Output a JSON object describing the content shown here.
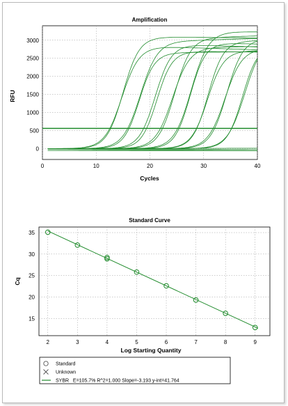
{
  "chart_data": [
    {
      "type": "line",
      "title": "Amplification",
      "xlabel": "Cycles",
      "ylabel": "RFU",
      "xlim": [
        0,
        40
      ],
      "ylim": [
        -300,
        3400
      ],
      "x_ticks": [
        0,
        10,
        20,
        30,
        40
      ],
      "y_ticks": [
        0,
        500,
        1000,
        1500,
        2000,
        2500,
        3000
      ],
      "grid": true,
      "line_color": "#1e8a2a",
      "threshold": 560,
      "series": [
        {
          "midpoint_cycle": 14.8,
          "plateau": 2850
        },
        {
          "midpoint_cycle": 15.0,
          "plateau": 3100
        },
        {
          "midpoint_cycle": 18.0,
          "plateau": 2650
        },
        {
          "midpoint_cycle": 18.2,
          "plateau": 2950
        },
        {
          "midpoint_cycle": 21.0,
          "plateau": 2900
        },
        {
          "midpoint_cycle": 21.3,
          "plateau": 2700
        },
        {
          "midpoint_cycle": 24.2,
          "plateau": 2800
        },
        {
          "midpoint_cycle": 24.6,
          "plateau": 3050
        },
        {
          "midpoint_cycle": 27.5,
          "plateau": 2950
        },
        {
          "midpoint_cycle": 27.7,
          "plateau": 3250
        },
        {
          "midpoint_cycle": 30.7,
          "plateau": 2700
        },
        {
          "midpoint_cycle": 30.8,
          "plateau": 2950
        },
        {
          "midpoint_cycle": 34.0,
          "plateau": 2800
        },
        {
          "midpoint_cycle": 34.3,
          "plateau": 3050
        },
        {
          "midpoint_cycle": 37.2,
          "plateau": 2850
        },
        {
          "midpoint_cycle": 37.6,
          "plateau": 3000
        }
      ]
    },
    {
      "type": "scatter",
      "title": "Standard Curve",
      "xlabel": "Log Starting Quantity",
      "ylabel": "Cq",
      "xlim": [
        1.7,
        9.5
      ],
      "ylim": [
        11,
        36.3
      ],
      "x_ticks": [
        2,
        3,
        4,
        5,
        6,
        7,
        8,
        9
      ],
      "y_ticks": [
        15,
        20,
        25,
        30,
        35
      ],
      "grid": true,
      "point_color": "#1e8a2a",
      "fit_line_color": "#1e8a2a",
      "points": [
        {
          "x": 2,
          "y": 35.1
        },
        {
          "x": 3,
          "y": 32.1
        },
        {
          "x": 4,
          "y": 29.2
        },
        {
          "x": 4,
          "y": 28.9
        },
        {
          "x": 5,
          "y": 25.8
        },
        {
          "x": 6,
          "y": 22.6
        },
        {
          "x": 7,
          "y": 19.3
        },
        {
          "x": 8,
          "y": 16.2
        },
        {
          "x": 9,
          "y": 12.9
        }
      ],
      "fit": {
        "slope": -3.193,
        "intercept": 41.764
      },
      "legend": {
        "position": "bottom-left",
        "items": [
          {
            "symbol": "circle",
            "label": "Standard"
          },
          {
            "symbol": "x",
            "label": "Unknown"
          },
          {
            "symbol": "line",
            "label": "SYBR   E=105.7% R^2=1.000 Slope=-3.193 y-int=41.764"
          }
        ]
      }
    }
  ]
}
